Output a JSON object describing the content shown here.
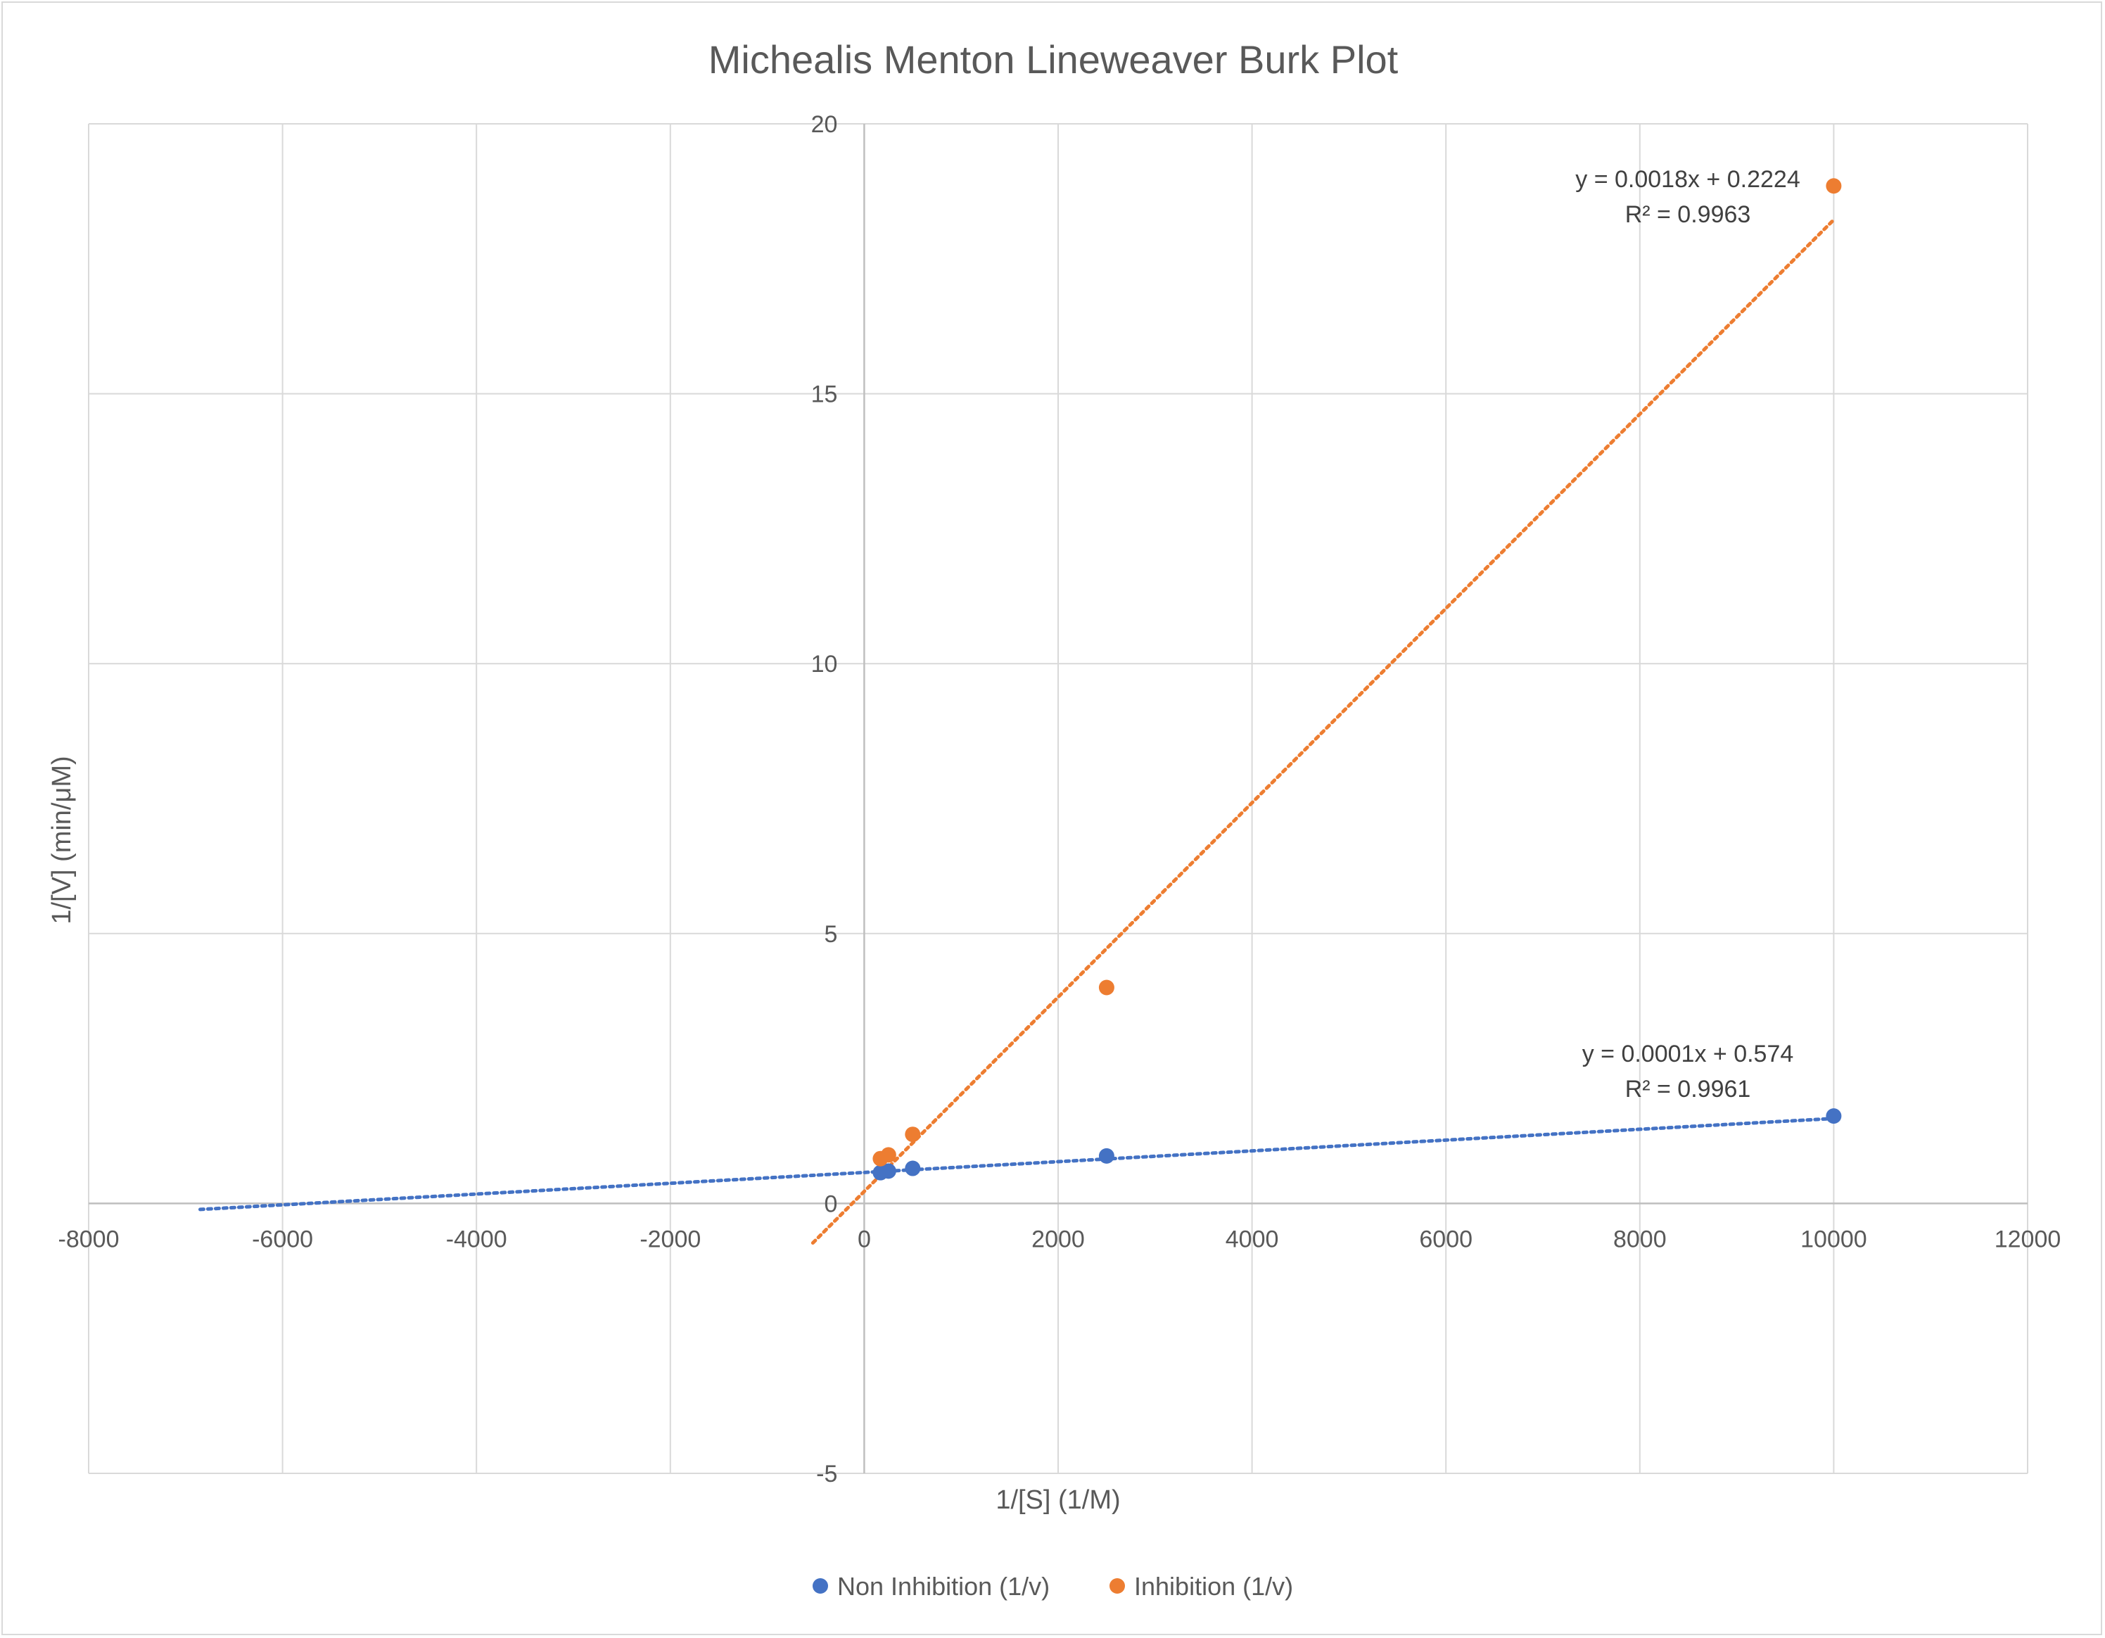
{
  "chart_data": {
    "type": "scatter",
    "title": "Michealis Menton Lineweaver Burk Plot",
    "xlabel": "1/[S] (1/M)",
    "ylabel": "1/[V] (min/μM)",
    "xlim": [
      -8000,
      12000
    ],
    "ylim": [
      -5,
      20
    ],
    "x_ticks": [
      -8000,
      -6000,
      -4000,
      -2000,
      0,
      2000,
      4000,
      6000,
      8000,
      10000,
      12000
    ],
    "y_ticks": [
      -5,
      0,
      5,
      10,
      15,
      20
    ],
    "x_tick_labels": [
      "-8000",
      "-6000",
      "-4000",
      "-2000",
      "0",
      "2000",
      "4000",
      "6000",
      "8000",
      "10000",
      "12000"
    ],
    "y_tick_labels": [
      "-5",
      "0",
      "5",
      "10",
      "15",
      "20"
    ],
    "grid": true,
    "legend_position": "bottom",
    "series": [
      {
        "name": "Non Inhibition (1/v)",
        "color": "#4472C4",
        "x": [
          167,
          250,
          500,
          2500,
          10000
        ],
        "y": [
          0.57,
          0.6,
          0.65,
          0.88,
          1.62
        ],
        "trendline": {
          "slope": 0.0001,
          "intercept": 0.574,
          "x_range": [
            -6850,
            10000
          ],
          "equation": "y = 0.0001x + 0.574",
          "r_squared": "R² = 0.9961"
        }
      },
      {
        "name": "Inhibition (1/v)",
        "color": "#ED7D31",
        "x": [
          167,
          250,
          500,
          2500,
          10000
        ],
        "y": [
          0.83,
          0.9,
          1.28,
          4.0,
          18.85
        ],
        "trendline": {
          "slope": 0.0018,
          "intercept": 0.2224,
          "x_range": [
            -530,
            10000
          ],
          "equation": "y = 0.0018x + 0.2224",
          "r_squared": "R² = 0.9963"
        }
      }
    ]
  }
}
